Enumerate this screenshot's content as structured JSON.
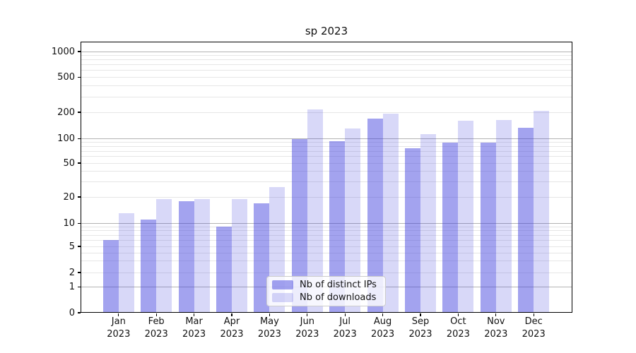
{
  "chart_data": {
    "type": "bar",
    "title": "sp 2023",
    "categories": [
      "Jan 2023",
      "Feb 2023",
      "Mar 2023",
      "Apr 2023",
      "May 2023",
      "Jun 2023",
      "Jul 2023",
      "Aug 2023",
      "Sep 2023",
      "Oct 2023",
      "Nov 2023",
      "Dec 2023"
    ],
    "series": [
      {
        "name": "Nb of distinct IPs",
        "color": "#a3a3ef",
        "fill": "rgba(60,60,220,0.47)",
        "values": [
          6,
          11,
          18,
          9,
          17,
          100,
          94,
          170,
          76,
          89,
          90,
          132
        ]
      },
      {
        "name": "Nb of downloads",
        "color": "#d8d8f8",
        "fill": "rgba(60,60,220,0.20)",
        "values": [
          13,
          19,
          19,
          19,
          26,
          215,
          130,
          193,
          113,
          161,
          163,
          206
        ]
      }
    ],
    "xlabel": "",
    "ylabel": "",
    "yscale": "symlog",
    "ylim": [
      0,
      1300
    ],
    "yticks": [
      0,
      1,
      2,
      5,
      10,
      20,
      50,
      100,
      200,
      500,
      1000
    ],
    "grid": true,
    "grid_major_ticks": [
      1,
      10,
      100,
      1000
    ],
    "grid_minor_ticks": [
      2,
      3,
      4,
      5,
      6,
      7,
      8,
      9,
      20,
      30,
      40,
      50,
      60,
      70,
      80,
      90,
      200,
      300,
      400,
      500,
      600,
      700,
      800,
      900
    ],
    "grid_major_color": "#b3b3b3",
    "grid_minor_color": "#e6e6e6",
    "legend_position": "lower center",
    "background": "#ffffff",
    "text_color": "#111111"
  }
}
